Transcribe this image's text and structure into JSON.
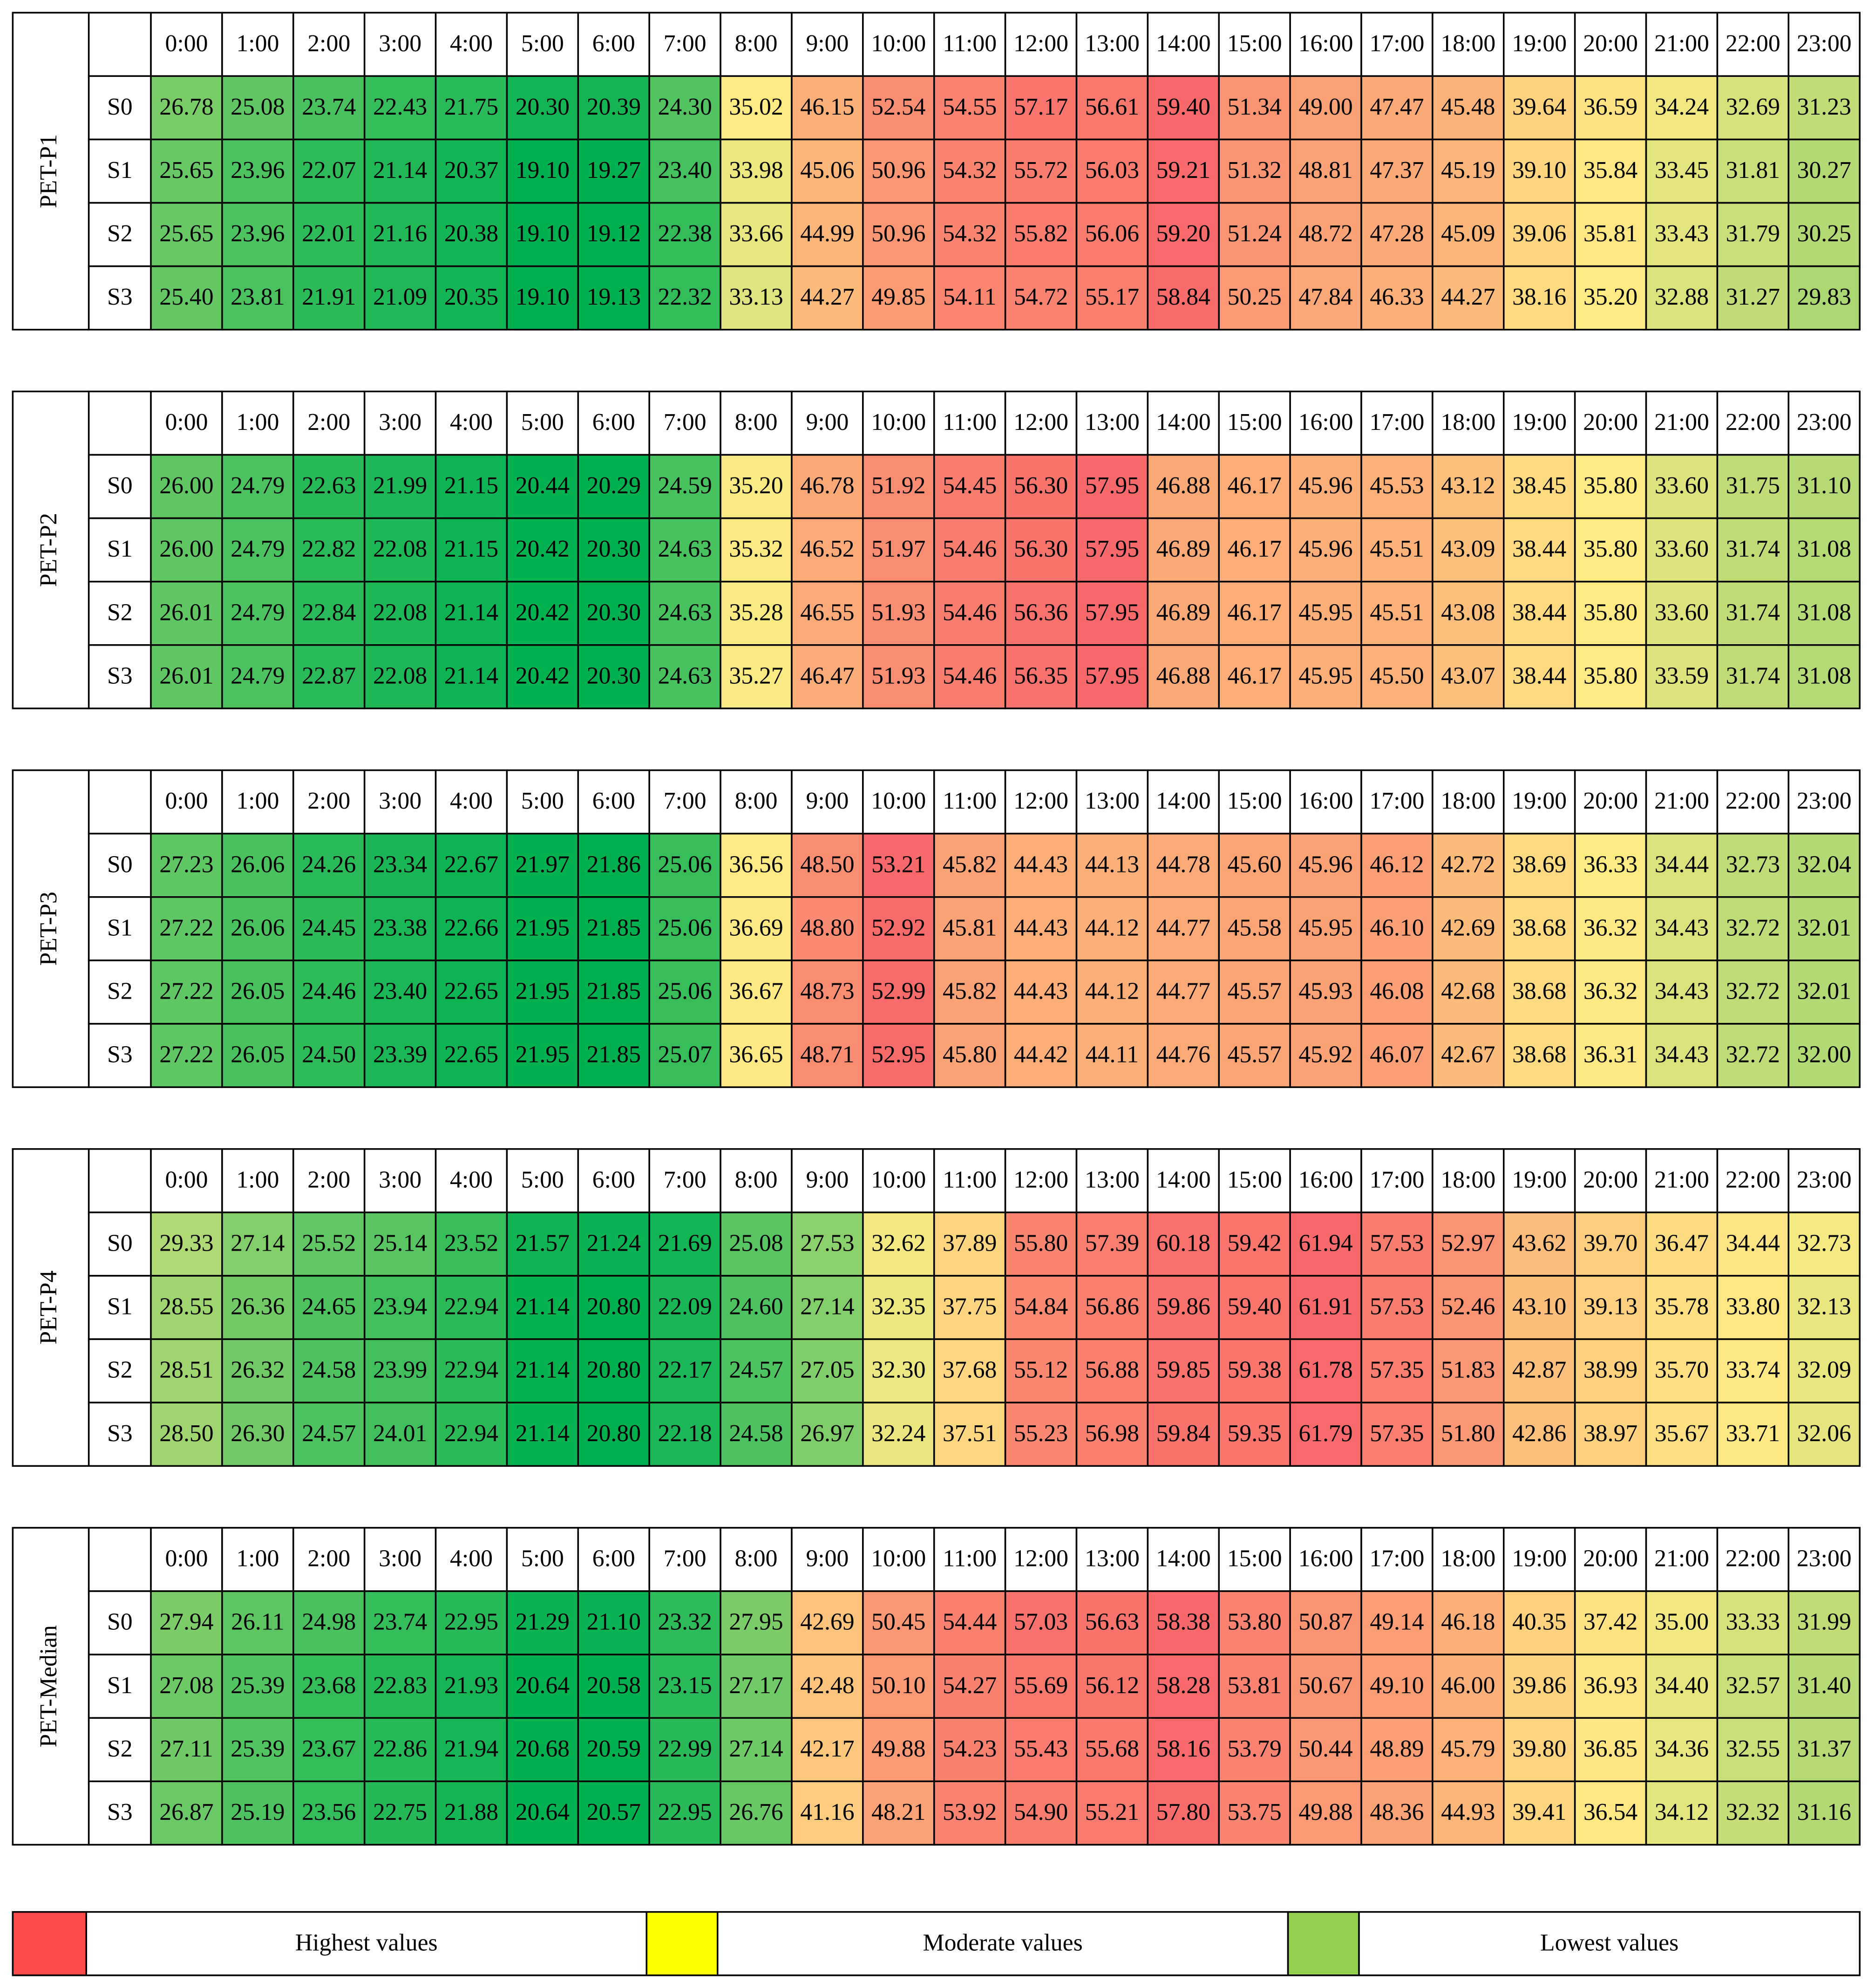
{
  "color_scale": {
    "low": "#00b050",
    "mid": "#ffeb84",
    "high": "#f8696b"
  },
  "tables": [
    {
      "label": "PET-P1",
      "columns": [
        "0:00",
        "1:00",
        "2:00",
        "3:00",
        "4:00",
        "5:00",
        "6:00",
        "7:00",
        "8:00",
        "9:00",
        "10:00",
        "11:00",
        "12:00",
        "13:00",
        "14:00",
        "15:00",
        "16:00",
        "17:00",
        "18:00",
        "19:00",
        "20:00",
        "21:00",
        "22:00",
        "23:00"
      ],
      "rows": [
        {
          "label": "S0",
          "cells": [
            "26.78",
            "25.08",
            "23.74",
            "22.43",
            "21.75",
            "20.30",
            "20.39",
            "24.30",
            "35.02",
            "46.15",
            "52.54",
            "54.55",
            "57.17",
            "56.61",
            "59.40",
            "51.34",
            "49.00",
            "47.47",
            "45.48",
            "39.64",
            "36.59",
            "34.24",
            "32.69",
            "31.23"
          ]
        },
        {
          "label": "S1",
          "cells": [
            "25.65",
            "23.96",
            "22.07",
            "21.14",
            "20.37",
            "19.10",
            "19.27",
            "23.40",
            "33.98",
            "45.06",
            "50.96",
            "54.32",
            "55.72",
            "56.03",
            "59.21",
            "51.32",
            "48.81",
            "47.37",
            "45.19",
            "39.10",
            "35.84",
            "33.45",
            "31.81",
            "30.27"
          ]
        },
        {
          "label": "S2",
          "cells": [
            "25.65",
            "23.96",
            "22.01",
            "21.16",
            "20.38",
            "19.10",
            "19.12",
            "22.38",
            "33.66",
            "44.99",
            "50.96",
            "54.32",
            "55.82",
            "56.06",
            "59.20",
            "51.24",
            "48.72",
            "47.28",
            "45.09",
            "39.06",
            "35.81",
            "33.43",
            "31.79",
            "30.25"
          ]
        },
        {
          "label": "S3",
          "cells": [
            "25.40",
            "23.81",
            "21.91",
            "21.09",
            "20.35",
            "19.10",
            "19.13",
            "22.32",
            "33.13",
            "44.27",
            "49.85",
            "54.11",
            "54.72",
            "55.17",
            "58.84",
            "50.25",
            "47.84",
            "46.33",
            "44.27",
            "38.16",
            "35.20",
            "32.88",
            "31.27",
            "29.83"
          ]
        }
      ]
    },
    {
      "label": "PET-P2",
      "columns": [
        "0:00",
        "1:00",
        "2:00",
        "3:00",
        "4:00",
        "5:00",
        "6:00",
        "7:00",
        "8:00",
        "9:00",
        "10:00",
        "11:00",
        "12:00",
        "13:00",
        "14:00",
        "15:00",
        "16:00",
        "17:00",
        "18:00",
        "19:00",
        "20:00",
        "21:00",
        "22:00",
        "23:00"
      ],
      "rows": [
        {
          "label": "S0",
          "cells": [
            "26.00",
            "24.79",
            "22.63",
            "21.99",
            "21.15",
            "20.44",
            "20.29",
            "24.59",
            "35.20",
            "46.78",
            "51.92",
            "54.45",
            "56.30",
            "57.95",
            "46.88",
            "46.17",
            "45.96",
            "45.53",
            "43.12",
            "38.45",
            "35.80",
            "33.60",
            "31.75",
            "31.10"
          ]
        },
        {
          "label": "S1",
          "cells": [
            "26.00",
            "24.79",
            "22.82",
            "22.08",
            "21.15",
            "20.42",
            "20.30",
            "24.63",
            "35.32",
            "46.52",
            "51.97",
            "54.46",
            "56.30",
            "57.95",
            "46.89",
            "46.17",
            "45.96",
            "45.51",
            "43.09",
            "38.44",
            "35.80",
            "33.60",
            "31.74",
            "31.08"
          ]
        },
        {
          "label": "S2",
          "cells": [
            "26.01",
            "24.79",
            "22.84",
            "22.08",
            "21.14",
            "20.42",
            "20.30",
            "24.63",
            "35.28",
            "46.55",
            "51.93",
            "54.46",
            "56.36",
            "57.95",
            "46.89",
            "46.17",
            "45.95",
            "45.51",
            "43.08",
            "38.44",
            "35.80",
            "33.60",
            "31.74",
            "31.08"
          ]
        },
        {
          "label": "S3",
          "cells": [
            "26.01",
            "24.79",
            "22.87",
            "22.08",
            "21.14",
            "20.42",
            "20.30",
            "24.63",
            "35.27",
            "46.47",
            "51.93",
            "54.46",
            "56.35",
            "57.95",
            "46.88",
            "46.17",
            "45.95",
            "45.50",
            "43.07",
            "38.44",
            "35.80",
            "33.59",
            "31.74",
            "31.08"
          ]
        }
      ]
    },
    {
      "label": "PET-P3",
      "columns": [
        "0:00",
        "1:00",
        "2:00",
        "3:00",
        "4:00",
        "5:00",
        "6:00",
        "7:00",
        "8:00",
        "9:00",
        "10:00",
        "11:00",
        "12:00",
        "13:00",
        "14:00",
        "15:00",
        "16:00",
        "17:00",
        "18:00",
        "19:00",
        "20:00",
        "21:00",
        "22:00",
        "23:00"
      ],
      "rows": [
        {
          "label": "S0",
          "cells": [
            "27.23",
            "26.06",
            "24.26",
            "23.34",
            "22.67",
            "21.97",
            "21.86",
            "25.06",
            "36.56",
            "48.50",
            "53.21",
            "45.82",
            "44.43",
            "44.13",
            "44.78",
            "45.60",
            "45.96",
            "46.12",
            "42.72",
            "38.69",
            "36.33",
            "34.44",
            "32.73",
            "32.04"
          ]
        },
        {
          "label": "S1",
          "cells": [
            "27.22",
            "26.06",
            "24.45",
            "23.38",
            "22.66",
            "21.95",
            "21.85",
            "25.06",
            "36.69",
            "48.80",
            "52.92",
            "45.81",
            "44.43",
            "44.12",
            "44.77",
            "45.58",
            "45.95",
            "46.10",
            "42.69",
            "38.68",
            "36.32",
            "34.43",
            "32.72",
            "32.01"
          ]
        },
        {
          "label": "S2",
          "cells": [
            "27.22",
            "26.05",
            "24.46",
            "23.40",
            "22.65",
            "21.95",
            "21.85",
            "25.06",
            "36.67",
            "48.73",
            "52.99",
            "45.82",
            "44.43",
            "44.12",
            "44.77",
            "45.57",
            "45.93",
            "46.08",
            "42.68",
            "38.68",
            "36.32",
            "34.43",
            "32.72",
            "32.01"
          ]
        },
        {
          "label": "S3",
          "cells": [
            "27.22",
            "26.05",
            "24.50",
            "23.39",
            "22.65",
            "21.95",
            "21.85",
            "25.07",
            "36.65",
            "48.71",
            "52.95",
            "45.80",
            "44.42",
            "44.11",
            "44.76",
            "45.57",
            "45.92",
            "46.07",
            "42.67",
            "38.68",
            "36.31",
            "34.43",
            "32.72",
            "32.00"
          ]
        }
      ]
    },
    {
      "label": "PET-P4",
      "columns": [
        "0:00",
        "1:00",
        "2:00",
        "3:00",
        "4:00",
        "5:00",
        "6:00",
        "7:00",
        "8:00",
        "9:00",
        "10:00",
        "11:00",
        "12:00",
        "13:00",
        "14:00",
        "15:00",
        "16:00",
        "17:00",
        "18:00",
        "19:00",
        "20:00",
        "21:00",
        "22:00",
        "23:00"
      ],
      "rows": [
        {
          "label": "S0",
          "cells": [
            "29.33",
            "27.14",
            "25.52",
            "25.14",
            "23.52",
            "21.57",
            "21.24",
            "21.69",
            "25.08",
            "27.53",
            "32.62",
            "37.89",
            "55.80",
            "57.39",
            "60.18",
            "59.42",
            "61.94",
            "57.53",
            "52.97",
            "43.62",
            "39.70",
            "36.47",
            "34.44",
            "32.73"
          ]
        },
        {
          "label": "S1",
          "cells": [
            "28.55",
            "26.36",
            "24.65",
            "23.94",
            "22.94",
            "21.14",
            "20.80",
            "22.09",
            "24.60",
            "27.14",
            "32.35",
            "37.75",
            "54.84",
            "56.86",
            "59.86",
            "59.40",
            "61.91",
            "57.53",
            "52.46",
            "43.10",
            "39.13",
            "35.78",
            "33.80",
            "32.13"
          ]
        },
        {
          "label": "S2",
          "cells": [
            "28.51",
            "26.32",
            "24.58",
            "23.99",
            "22.94",
            "21.14",
            "20.80",
            "22.17",
            "24.57",
            "27.05",
            "32.30",
            "37.68",
            "55.12",
            "56.88",
            "59.85",
            "59.38",
            "61.78",
            "57.35",
            "51.83",
            "42.87",
            "38.99",
            "35.70",
            "33.74",
            "32.09"
          ]
        },
        {
          "label": "S3",
          "cells": [
            "28.50",
            "26.30",
            "24.57",
            "24.01",
            "22.94",
            "21.14",
            "20.80",
            "22.18",
            "24.58",
            "26.97",
            "32.24",
            "37.51",
            "55.23",
            "56.98",
            "59.84",
            "59.35",
            "61.79",
            "57.35",
            "51.80",
            "42.86",
            "38.97",
            "35.67",
            "33.71",
            "32.06"
          ]
        }
      ]
    },
    {
      "label": "PET-Median",
      "columns": [
        "0:00",
        "1:00",
        "2:00",
        "3:00",
        "4:00",
        "5:00",
        "6:00",
        "7:00",
        "8:00",
        "9:00",
        "10:00",
        "11:00",
        "12:00",
        "13:00",
        "14:00",
        "15:00",
        "16:00",
        "17:00",
        "18:00",
        "19:00",
        "20:00",
        "21:00",
        "22:00",
        "23:00"
      ],
      "rows": [
        {
          "label": "S0",
          "cells": [
            "27.94",
            "26.11",
            "24.98",
            "23.74",
            "22.95",
            "21.29",
            "21.10",
            "23.32",
            "27.95",
            "42.69",
            "50.45",
            "54.44",
            "57.03",
            "56.63",
            "58.38",
            "53.80",
            "50.87",
            "49.14",
            "46.18",
            "40.35",
            "37.42",
            "35.00",
            "33.33",
            "31.99"
          ]
        },
        {
          "label": "S1",
          "cells": [
            "27.08",
            "25.39",
            "23.68",
            "22.83",
            "21.93",
            "20.64",
            "20.58",
            "23.15",
            "27.17",
            "42.48",
            "50.10",
            "54.27",
            "55.69",
            "56.12",
            "58.28",
            "53.81",
            "50.67",
            "49.10",
            "46.00",
            "39.86",
            "36.93",
            "34.40",
            "32.57",
            "31.40"
          ]
        },
        {
          "label": "S2",
          "cells": [
            "27.11",
            "25.39",
            "23.67",
            "22.86",
            "21.94",
            "20.68",
            "20.59",
            "22.99",
            "27.14",
            "42.17",
            "49.88",
            "54.23",
            "55.43",
            "55.68",
            "58.16",
            "53.79",
            "50.44",
            "48.89",
            "45.79",
            "39.80",
            "36.85",
            "34.36",
            "32.55",
            "31.37"
          ]
        },
        {
          "label": "S3",
          "cells": [
            "26.87",
            "25.19",
            "23.56",
            "22.75",
            "21.88",
            "20.64",
            "20.57",
            "22.95",
            "26.76",
            "41.16",
            "48.21",
            "53.92",
            "54.90",
            "55.21",
            "57.80",
            "53.75",
            "49.88",
            "48.36",
            "44.93",
            "39.41",
            "36.54",
            "34.12",
            "32.32",
            "31.16"
          ]
        }
      ]
    }
  ],
  "legend": [
    {
      "label": "Highest values",
      "color": "#ff4b4b"
    },
    {
      "label": "Moderate values",
      "color": "#ffff00"
    },
    {
      "label": "Lowest values",
      "color": "#92d050"
    }
  ]
}
